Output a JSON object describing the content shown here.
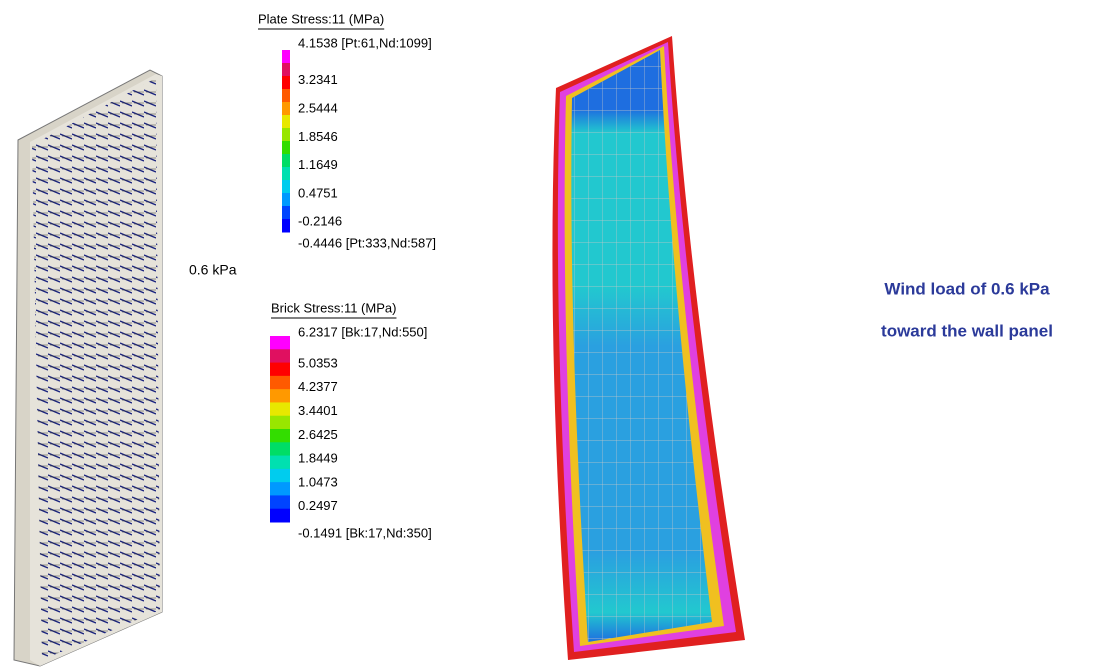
{
  "load_label": "0.6 kPa",
  "plate_legend": {
    "title": "Plate Stress:11 (MPa)",
    "max": "4.1538 [Pt:61,Nd:1099]",
    "ticks": [
      "3.2341",
      "2.5444",
      "1.8546",
      "1.1649",
      "0.4751",
      "-0.2146"
    ],
    "min": "-0.4446 [Pt:333,Nd:587]"
  },
  "brick_legend": {
    "title": "Brick Stress:11 (MPa)",
    "max": "6.2317 [Bk:17,Nd:550]",
    "ticks": [
      "5.0353",
      "4.2377",
      "3.4401",
      "2.6425",
      "1.8449",
      "1.0473",
      "0.2497"
    ],
    "min": "-0.1491 [Bk:17,Nd:350]"
  },
  "caption": [
    "Wind load of 0.6 kPa",
    "toward the wall panel"
  ]
}
